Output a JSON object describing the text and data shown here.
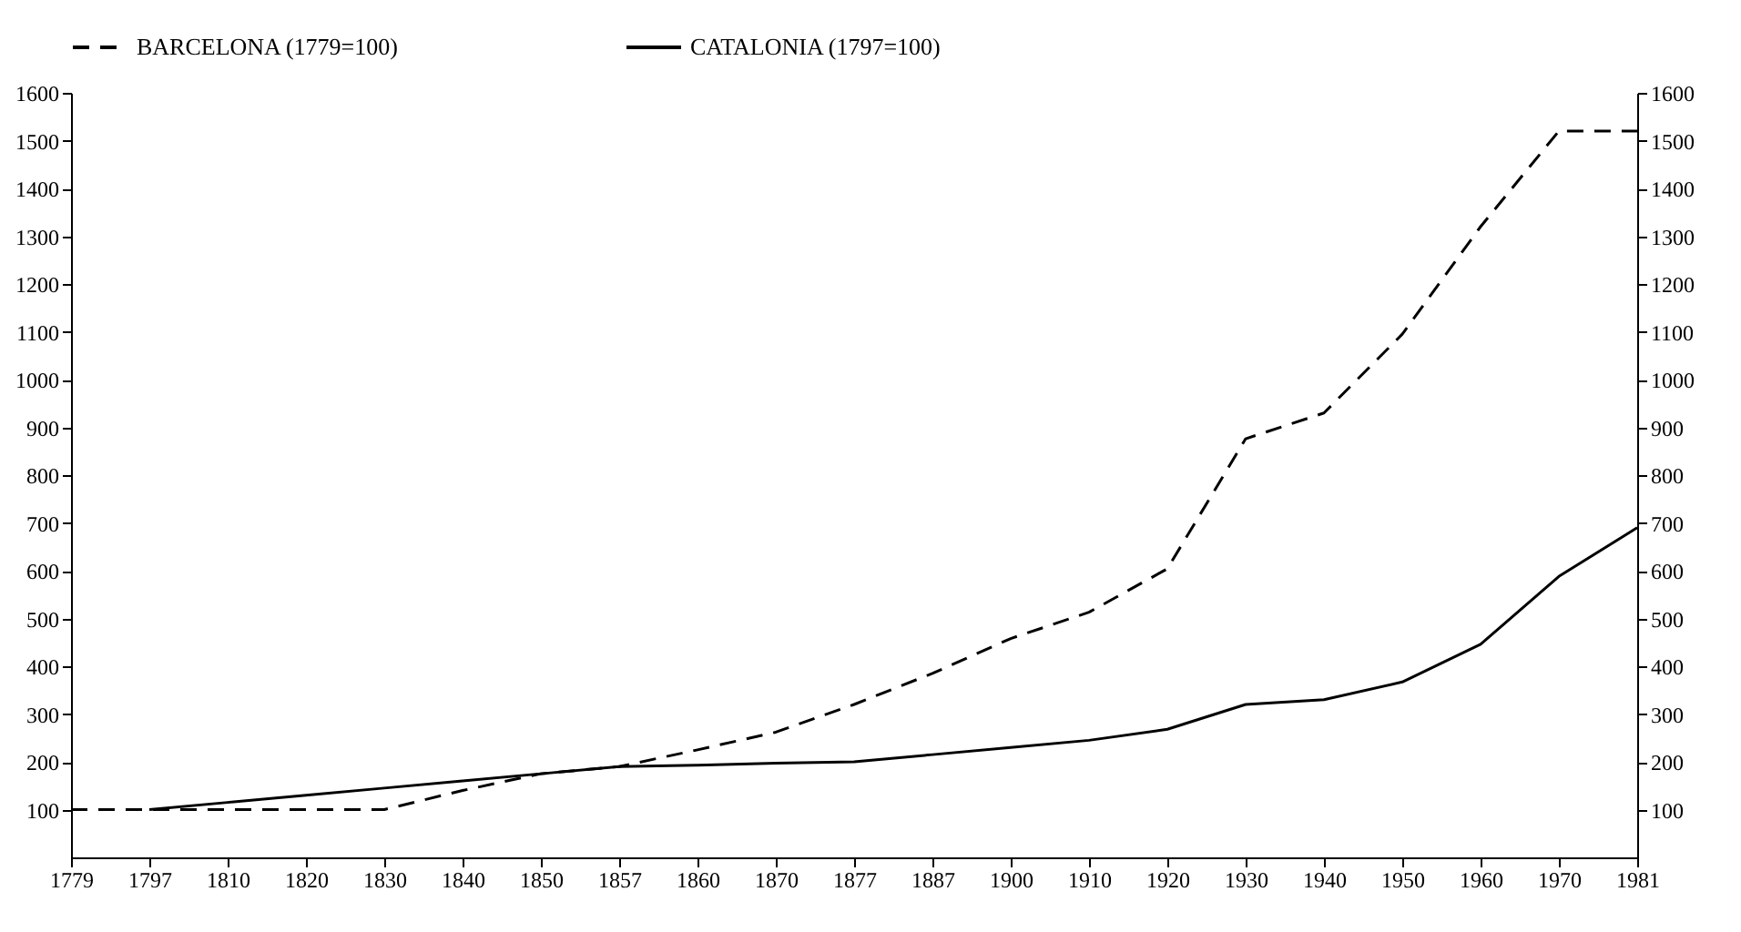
{
  "chart_data": {
    "type": "line",
    "categories": [
      "1779",
      "1797",
      "1810",
      "1820",
      "1830",
      "1840",
      "1850",
      "1857",
      "1860",
      "1870",
      "1877",
      "1887",
      "1900",
      "1910",
      "1920",
      "1930",
      "1940",
      "1950",
      "1960",
      "1970",
      "1981"
    ],
    "series": [
      {
        "name": "BARCELONA (1779=100)",
        "color": "#000000",
        "line_style": "dashed",
        "values": [
          100,
          100,
          100,
          100,
          100,
          140,
          175,
          190,
          225,
          262,
          320,
          385,
          458,
          513,
          604,
          876,
          930,
          1095,
          1320,
          1520,
          1520
        ]
      },
      {
        "name": "CATALONIA (1797=100)",
        "color": "#000000",
        "line_style": "solid",
        "values": [
          null,
          100,
          115,
          130,
          145,
          160,
          175,
          190,
          193,
          197,
          200,
          215,
          230,
          245,
          268,
          320,
          330,
          367,
          446,
          588,
          690
        ]
      }
    ],
    "ylim": [
      0,
      1600
    ],
    "yticks": [
      100,
      200,
      300,
      400,
      500,
      600,
      700,
      800,
      900,
      1000,
      1100,
      1200,
      1300,
      1400,
      1500,
      1600
    ],
    "y2lim": [
      0,
      1600
    ],
    "y2ticks": [
      100,
      200,
      300,
      400,
      500,
      600,
      700,
      800,
      900,
      1000,
      1100,
      1200,
      1300,
      1400,
      1500,
      1600
    ],
    "grid": false,
    "legend": "top",
    "marker": "none"
  }
}
